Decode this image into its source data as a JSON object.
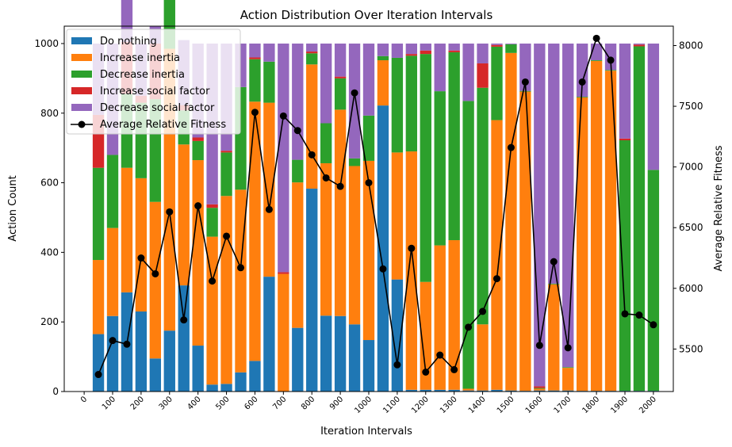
{
  "chart_data": {
    "type": "bar",
    "title": "Action Distribution Over Iteration Intervals",
    "xlabel": "Iteration Intervals",
    "ylabel": "Action Count",
    "y2label": "Average Relative Fitness",
    "xlim": [
      -70,
      2070
    ],
    "ylim": [
      0,
      1050
    ],
    "y2lim": [
      5150,
      8160
    ],
    "xticks": [
      0,
      100,
      200,
      300,
      400,
      500,
      600,
      700,
      800,
      900,
      1000,
      1100,
      1200,
      1300,
      1400,
      1500,
      1600,
      1700,
      1800,
      1900,
      2000
    ],
    "yticks": [
      0,
      200,
      400,
      600,
      800,
      1000
    ],
    "y2ticks": [
      5500,
      6000,
      6500,
      7000,
      7500,
      8000
    ],
    "x": [
      50,
      100,
      150,
      200,
      250,
      300,
      350,
      400,
      450,
      500,
      550,
      600,
      650,
      700,
      750,
      800,
      850,
      900,
      950,
      1000,
      1050,
      1100,
      1150,
      1200,
      1250,
      1300,
      1350,
      1400,
      1450,
      1500,
      1550,
      1600,
      1650,
      1700,
      1750,
      1800,
      1850,
      1900,
      1950,
      2000
    ],
    "stacked": true,
    "legend_position": "upper-left",
    "series": [
      {
        "name": "Do nothing",
        "color": "#1f77b4",
        "values": [
          165,
          217,
          285,
          230,
          95,
          175,
          305,
          132,
          20,
          22,
          55,
          88,
          330,
          0,
          183,
          583,
          218,
          217,
          193,
          148,
          822,
          322,
          5,
          5,
          5,
          5,
          3,
          3,
          5,
          3,
          2,
          3,
          3,
          3,
          2,
          2,
          2,
          2,
          2,
          2
        ]
      },
      {
        "name": "Increase inertia",
        "color": "#ff7f0e",
        "values": [
          213,
          253,
          358,
          383,
          450,
          810,
          405,
          533,
          425,
          540,
          525,
          745,
          500,
          338,
          418,
          357,
          438,
          593,
          455,
          515,
          130,
          365,
          685,
          310,
          415,
          430,
          5,
          190,
          775,
          970,
          860,
          5,
          305,
          65,
          843,
          948,
          920,
          0,
          0,
          0
        ]
      },
      {
        "name": "Decrease inertia",
        "color": "#2ca02c",
        "values": [
          265,
          210,
          212,
          217,
          295,
          200,
          98,
          55,
          83,
          125,
          295,
          122,
          118,
          0,
          65,
          32,
          115,
          90,
          22,
          130,
          12,
          272,
          275,
          655,
          443,
          540,
          827,
          680,
          211,
          25,
          2,
          2,
          2,
          2,
          2,
          2,
          2,
          720,
          990,
          635
        ]
      },
      {
        "name": "Increase social factor",
        "color": "#d62728",
        "values": [
          152,
          0,
          150,
          20,
          160,
          0,
          15,
          10,
          10,
          5,
          0,
          5,
          0,
          5,
          0,
          5,
          0,
          5,
          0,
          0,
          0,
          0,
          5,
          10,
          0,
          5,
          0,
          70,
          5,
          0,
          0,
          5,
          0,
          0,
          0,
          0,
          0,
          5,
          5,
          0
        ]
      },
      {
        "name": "Decrease social factor",
        "color": "#9467bd",
        "values": [
          205,
          320,
          195,
          150,
          50,
          0,
          187,
          270,
          462,
          308,
          125,
          40,
          52,
          657,
          334,
          23,
          229,
          95,
          330,
          207,
          36,
          41,
          30,
          20,
          137,
          20,
          165,
          57,
          4,
          2,
          136,
          985,
          690,
          930,
          153,
          48,
          76,
          273,
          3,
          363
        ]
      }
    ],
    "line_series": {
      "name": "Average Relative Fitness",
      "color": "#000000",
      "values": [
        5290,
        5570,
        5540,
        6250,
        6120,
        6630,
        5740,
        6680,
        6060,
        6430,
        6170,
        7450,
        6650,
        7420,
        7300,
        7100,
        6910,
        6840,
        7610,
        6870,
        6160,
        5370,
        6330,
        5310,
        5450,
        5330,
        5680,
        5810,
        6080,
        7160,
        7700,
        5530,
        6220,
        5510,
        7700,
        8060,
        7880,
        5790,
        5780,
        5700
      ]
    }
  }
}
